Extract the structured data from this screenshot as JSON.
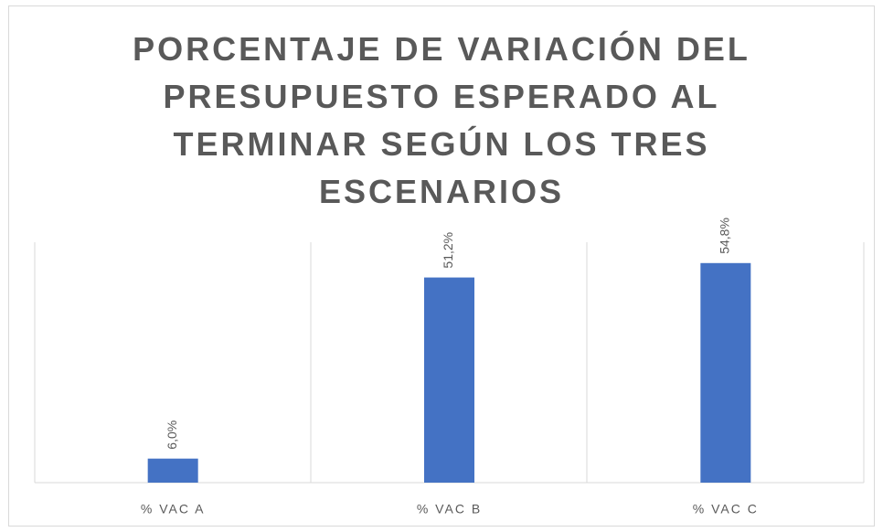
{
  "chart_data": {
    "type": "bar",
    "title": "PORCENTAJE DE VARIACIÓN DEL PRESUPUESTO ESPERADO AL TERMINAR SEGÚN LOS TRES ESCENARIOS",
    "categories": [
      "% VAC A",
      "% VAC B",
      "% VAC C"
    ],
    "values": [
      6.0,
      51.2,
      54.8
    ],
    "value_labels": [
      "6,0%",
      "51,2%",
      "54,8%"
    ],
    "color": "#4472c4",
    "ylim": [
      0,
      60
    ]
  }
}
